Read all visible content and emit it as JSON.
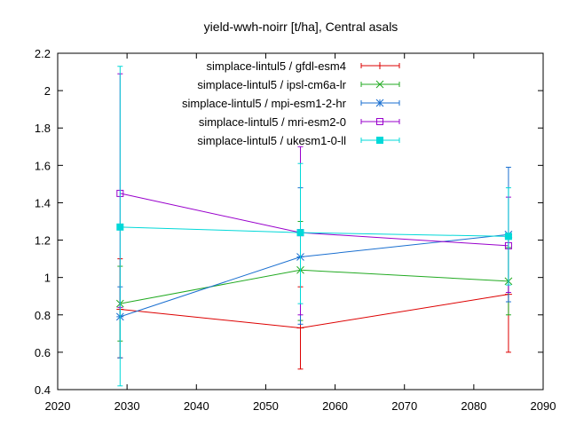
{
  "chart_data": {
    "type": "line",
    "title": "yield-wwh-noirr [t/ha], Central asals",
    "xlabel": "",
    "ylabel": "",
    "xlim": [
      2020,
      2090
    ],
    "ylim": [
      0.4,
      2.2
    ],
    "xticks": [
      2020,
      2030,
      2040,
      2050,
      2060,
      2070,
      2080,
      2090
    ],
    "yticks": [
      0.4,
      0.6,
      0.8,
      1.0,
      1.2,
      1.4,
      1.6,
      1.8,
      2.0,
      2.2
    ],
    "xtick_labels": [
      "2020",
      "2030",
      "2040",
      "2050",
      "2060",
      "2070",
      "2080",
      "2090"
    ],
    "ytick_labels": [
      "0.4",
      "0.6",
      "0.8",
      "1",
      "1.2",
      "1.4",
      "1.6",
      "1.8",
      "2",
      "2.2"
    ],
    "legend_position": "top-center",
    "error_bars": true,
    "x": [
      2029,
      2055,
      2085
    ],
    "series": [
      {
        "name": "simplace-lintul5 / gfdl-esm4",
        "color": "#dd0000",
        "marker": "plus",
        "values": [
          0.83,
          0.73,
          0.91
        ],
        "err_low": [
          0.57,
          0.51,
          0.6
        ],
        "err_high": [
          1.1,
          0.95,
          1.22
        ]
      },
      {
        "name": "simplace-lintul5 / ipsl-cm6a-lr",
        "color": "#22aa22",
        "marker": "cross",
        "values": [
          0.86,
          1.04,
          0.98
        ],
        "err_low": [
          0.66,
          0.77,
          0.8
        ],
        "err_high": [
          1.06,
          1.3,
          1.16
        ]
      },
      {
        "name": "simplace-lintul5 / mpi-esm1-2-hr",
        "color": "#1a6fd0",
        "marker": "star",
        "values": [
          0.79,
          1.11,
          1.23
        ],
        "err_low": [
          0.57,
          0.75,
          0.87
        ],
        "err_high": [
          0.95,
          1.48,
          1.59
        ]
      },
      {
        "name": "simplace-lintul5 / mri-esm2-0",
        "color": "#9900cc",
        "marker": "square-open",
        "values": [
          1.45,
          1.24,
          1.17
        ],
        "err_low": [
          0.84,
          0.8,
          0.92
        ],
        "err_high": [
          2.09,
          1.7,
          1.43
        ]
      },
      {
        "name": "simplace-lintul5 / ukesm1-0-ll",
        "color": "#00d8d8",
        "marker": "square-filled",
        "values": [
          1.27,
          1.24,
          1.22
        ],
        "err_low": [
          0.42,
          0.86,
          0.96
        ],
        "err_high": [
          2.13,
          1.61,
          1.48
        ]
      }
    ]
  }
}
